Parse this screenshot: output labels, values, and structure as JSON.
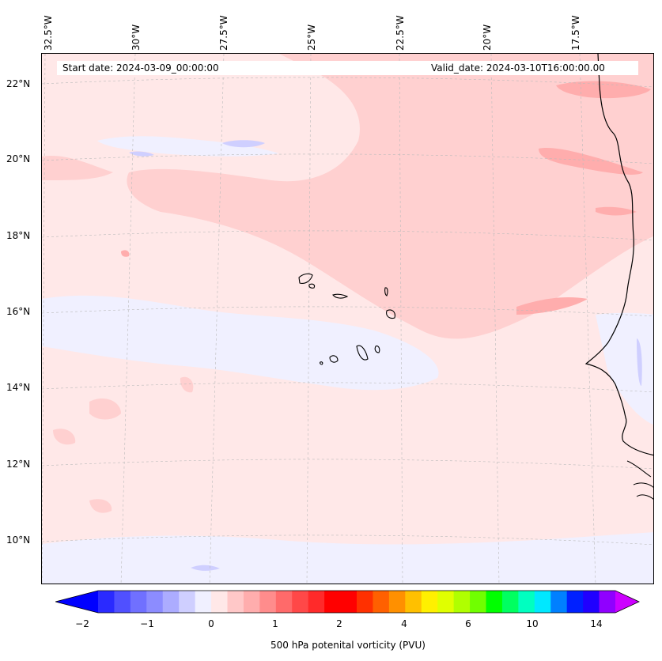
{
  "header": {
    "start_date": "Start date: 2024-03-09_00:00:00",
    "valid_date": "Valid_date: 2024-03-10T16:00:00.00"
  },
  "longitude_labels": [
    "32.5°W",
    "30°W",
    "27.5°W",
    "25°W",
    "22.5°W",
    "20°W",
    "17.5°W"
  ],
  "latitude_labels": [
    "22°N",
    "20°N",
    "18°N",
    "16°N",
    "14°N",
    "12°N",
    "10°N"
  ],
  "colorbar": {
    "label": "500 hPa potenital vorticity (PVU)",
    "ticks": [
      "−2",
      "−1",
      "0",
      "1",
      "2",
      "4",
      "6",
      "10",
      "14"
    ],
    "colors": [
      "#0000ff",
      "#2a2aff",
      "#5050ff",
      "#7070ff",
      "#8c8cff",
      "#acacff",
      "#cfcfff",
      "#f0f0ff",
      "#ffe8e8",
      "#ffc8c8",
      "#ffadad",
      "#ff8c8c",
      "#ff6a6a",
      "#ff4848",
      "#ff2a2a",
      "#ff0000",
      "#ff0000",
      "#ff3000",
      "#ff6000",
      "#ff9000",
      "#ffc000",
      "#fff000",
      "#e0ff00",
      "#b0ff00",
      "#70ff00",
      "#00ff00",
      "#00ff60",
      "#00ffc0",
      "#00e8ff",
      "#0080ff",
      "#0020ff",
      "#2000ff",
      "#9000ff",
      "#cc00ff"
    ]
  },
  "map_colors": {
    "ocean_base": "#ffe8e8",
    "low_pv": "#f0f0ff",
    "low_pv_2": "#cfcfff",
    "mid_pv": "#ffd0d0",
    "high_pv": "#ffadad",
    "coast": "#000000"
  }
}
